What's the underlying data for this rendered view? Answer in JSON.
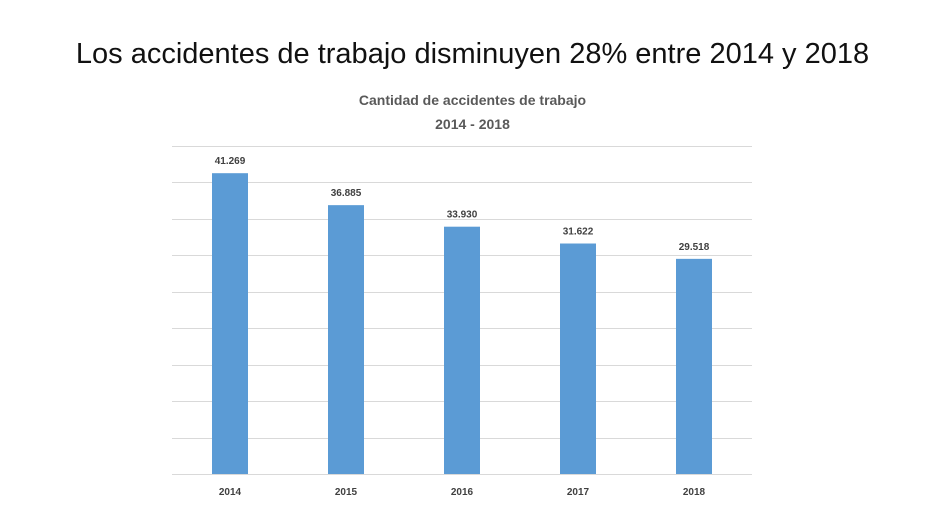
{
  "slide": {
    "title": "Los accidentes de trabajo disminuyen 28% entre 2014 y 2018"
  },
  "chart_data": {
    "type": "bar",
    "title": "Cantidad de accidentes de trabajo",
    "subtitle": "2014 - 2018",
    "categories": [
      "2014",
      "2015",
      "2016",
      "2017",
      "2018"
    ],
    "values": [
      41269,
      36885,
      33930,
      31622,
      29518
    ],
    "data_labels": [
      "41.269",
      "36.885",
      "33.930",
      "31.622",
      "29.518"
    ],
    "xlabel": "",
    "ylabel": "",
    "ylim": [
      0,
      45000
    ],
    "y_tick_step": 5000,
    "grid": true,
    "y_tick_labels_visible": false,
    "legend": "none",
    "colors": {
      "bar": "#5B9BD5",
      "grid": "#D9D9D9",
      "label": "#404040"
    }
  }
}
